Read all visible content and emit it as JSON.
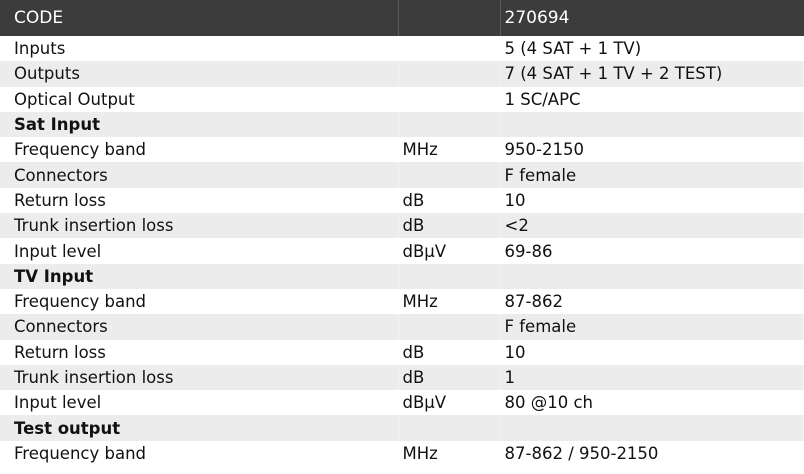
{
  "header": {
    "label": "CODE",
    "unit": "",
    "value": "270694"
  },
  "rows": [
    {
      "label": "Inputs",
      "unit": "",
      "value": "5 (4 SAT + 1 TV)"
    },
    {
      "label": "Outputs",
      "unit": "",
      "value": "7 (4 SAT + 1 TV + 2 TEST)"
    },
    {
      "label": "Optical Output",
      "unit": "",
      "value": "1 SC/APC"
    },
    {
      "label": "Sat Input",
      "unit": "",
      "value": "",
      "section": true
    },
    {
      "label": "Frequency band",
      "unit": "MHz",
      "value": "950-2150"
    },
    {
      "label": "Connectors",
      "unit": "",
      "value": "F female"
    },
    {
      "label": "Return loss",
      "unit": "dB",
      "value": "10"
    },
    {
      "label": "Trunk insertion loss",
      "unit": "dB",
      "value": "<2"
    },
    {
      "label": "Input level",
      "unit": "dBµV",
      "value": "69-86"
    },
    {
      "label": "TV Input",
      "unit": "",
      "value": "",
      "section": true
    },
    {
      "label": "Frequency band",
      "unit": "MHz",
      "value": "87-862"
    },
    {
      "label": "Connectors",
      "unit": "",
      "value": "F female"
    },
    {
      "label": "Return loss",
      "unit": "dB",
      "value": "10"
    },
    {
      "label": "Trunk insertion loss",
      "unit": "dB",
      "value": "1"
    },
    {
      "label": "Input level",
      "unit": "dBµV",
      "value": "80 @10 ch"
    },
    {
      "label": "Test output",
      "unit": "",
      "value": "",
      "section": true
    },
    {
      "label": "Frequency band",
      "unit": "MHz",
      "value": "87-862 / 950-2150"
    }
  ]
}
